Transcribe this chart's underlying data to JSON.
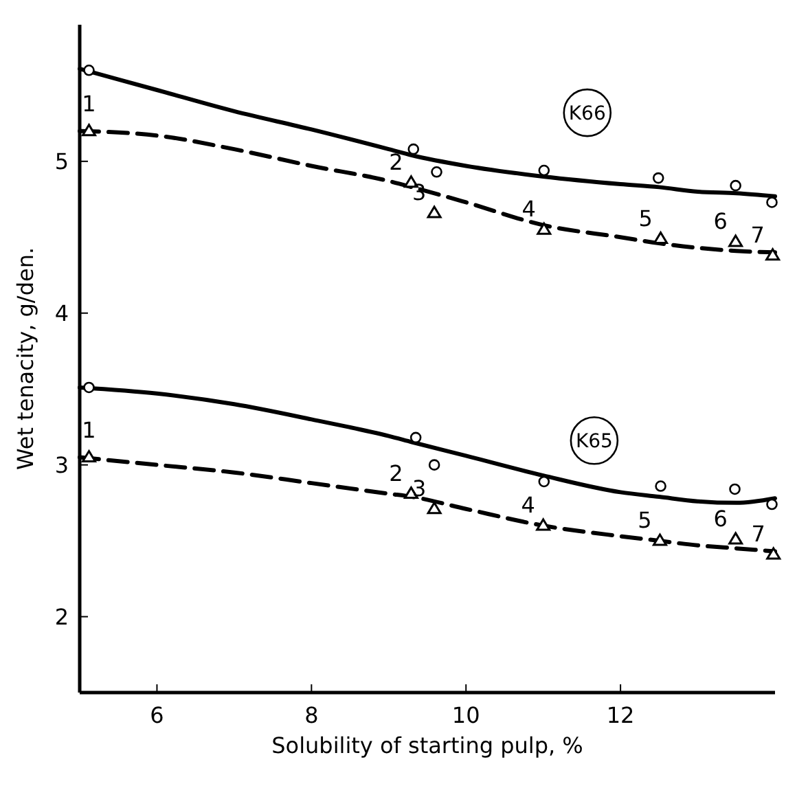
{
  "chart_data": {
    "type": "scatter",
    "xlabel": "Solubility of starting pulp, %",
    "ylabel": "Wet tenacity, g/den.",
    "xlim": [
      5,
      14
    ],
    "ylim": [
      1.5,
      5.9
    ],
    "xticks": [
      6,
      8,
      10,
      12
    ],
    "yticks": [
      2,
      3,
      4,
      5
    ],
    "grid": false,
    "series": [
      {
        "type": "line",
        "color": "#000000",
        "line_style": "solid",
        "marker": "none",
        "x": [
          5,
          6,
          7,
          8,
          9,
          9.3,
          10,
          11,
          12,
          12.5,
          13,
          13.5,
          14
        ],
        "values": [
          5.61,
          5.47,
          5.33,
          5.21,
          5.08,
          5.04,
          4.97,
          4.9,
          4.85,
          4.83,
          4.8,
          4.79,
          4.77
        ]
      },
      {
        "type": "line",
        "color": "#000000",
        "line_style": "dashed",
        "marker": "none",
        "x": [
          5,
          6,
          7,
          8,
          9,
          9.3,
          10,
          11,
          12,
          12.5,
          13,
          13.5,
          14
        ],
        "values": [
          5.2,
          5.17,
          5.08,
          4.97,
          4.87,
          4.83,
          4.73,
          4.58,
          4.5,
          4.46,
          4.43,
          4.41,
          4.4
        ]
      },
      {
        "color": "#000000",
        "marker": "circle",
        "x": [
          5.12,
          9.32,
          9.62,
          11.01,
          12.49,
          13.49,
          13.96
        ],
        "values": [
          5.6,
          5.08,
          4.93,
          4.94,
          4.89,
          4.84,
          4.73
        ]
      },
      {
        "color": "#000000",
        "marker": "triangle",
        "x": [
          5.12,
          9.29,
          9.59,
          11.01,
          12.52,
          13.49,
          13.97
        ],
        "values": [
          5.2,
          4.86,
          4.66,
          4.55,
          4.49,
          4.47,
          4.38
        ]
      },
      {
        "type": "line",
        "color": "#000000",
        "line_style": "solid",
        "marker": "none",
        "x": [
          5,
          6,
          7,
          8,
          9,
          9.3,
          10,
          11,
          12,
          12.5,
          13,
          13.5,
          14
        ],
        "values": [
          3.51,
          3.47,
          3.4,
          3.3,
          3.19,
          3.15,
          3.06,
          2.93,
          2.82,
          2.79,
          2.76,
          2.75,
          2.78
        ]
      },
      {
        "type": "line",
        "color": "#000000",
        "line_style": "dashed",
        "marker": "none",
        "x": [
          5,
          6,
          7,
          8,
          9,
          9.3,
          10,
          11,
          12,
          12.5,
          13,
          13.5,
          14
        ],
        "values": [
          3.05,
          3.0,
          2.95,
          2.88,
          2.81,
          2.79,
          2.71,
          2.6,
          2.53,
          2.5,
          2.47,
          2.45,
          2.43
        ]
      },
      {
        "color": "#000000",
        "marker": "circle",
        "x": [
          5.12,
          9.35,
          9.59,
          11.01,
          12.52,
          13.48,
          13.96
        ],
        "values": [
          3.51,
          3.18,
          3.0,
          2.89,
          2.86,
          2.84,
          2.74
        ]
      },
      {
        "color": "#000000",
        "marker": "triangle",
        "x": [
          5.12,
          9.29,
          9.59,
          11.0,
          12.51,
          13.49,
          13.98
        ],
        "values": [
          3.05,
          2.81,
          2.71,
          2.6,
          2.5,
          2.51,
          2.41
        ]
      }
    ],
    "annotations": [
      {
        "text": "K66",
        "x": 11.57,
        "y": 5.32
      },
      {
        "text": "K65",
        "x": 11.66,
        "y": 3.16
      },
      {
        "text": "1",
        "x": 5.12,
        "y": 5.2
      },
      {
        "text": "2",
        "x": 9.29,
        "y": 4.86
      },
      {
        "text": "3",
        "x": 9.59,
        "y": 4.66
      },
      {
        "text": "4",
        "x": 11.01,
        "y": 4.55
      },
      {
        "text": "5",
        "x": 12.52,
        "y": 4.49
      },
      {
        "text": "6",
        "x": 13.49,
        "y": 4.47
      },
      {
        "text": "7",
        "x": 13.97,
        "y": 4.38
      },
      {
        "text": "1",
        "x": 5.12,
        "y": 3.05
      },
      {
        "text": "2",
        "x": 9.29,
        "y": 2.81
      },
      {
        "text": "3",
        "x": 9.59,
        "y": 2.71
      },
      {
        "text": "4",
        "x": 11.0,
        "y": 2.6
      },
      {
        "text": "5",
        "x": 12.51,
        "y": 2.5
      },
      {
        "text": "6",
        "x": 13.49,
        "y": 2.51
      },
      {
        "text": "7",
        "x": 13.98,
        "y": 2.41
      }
    ]
  }
}
